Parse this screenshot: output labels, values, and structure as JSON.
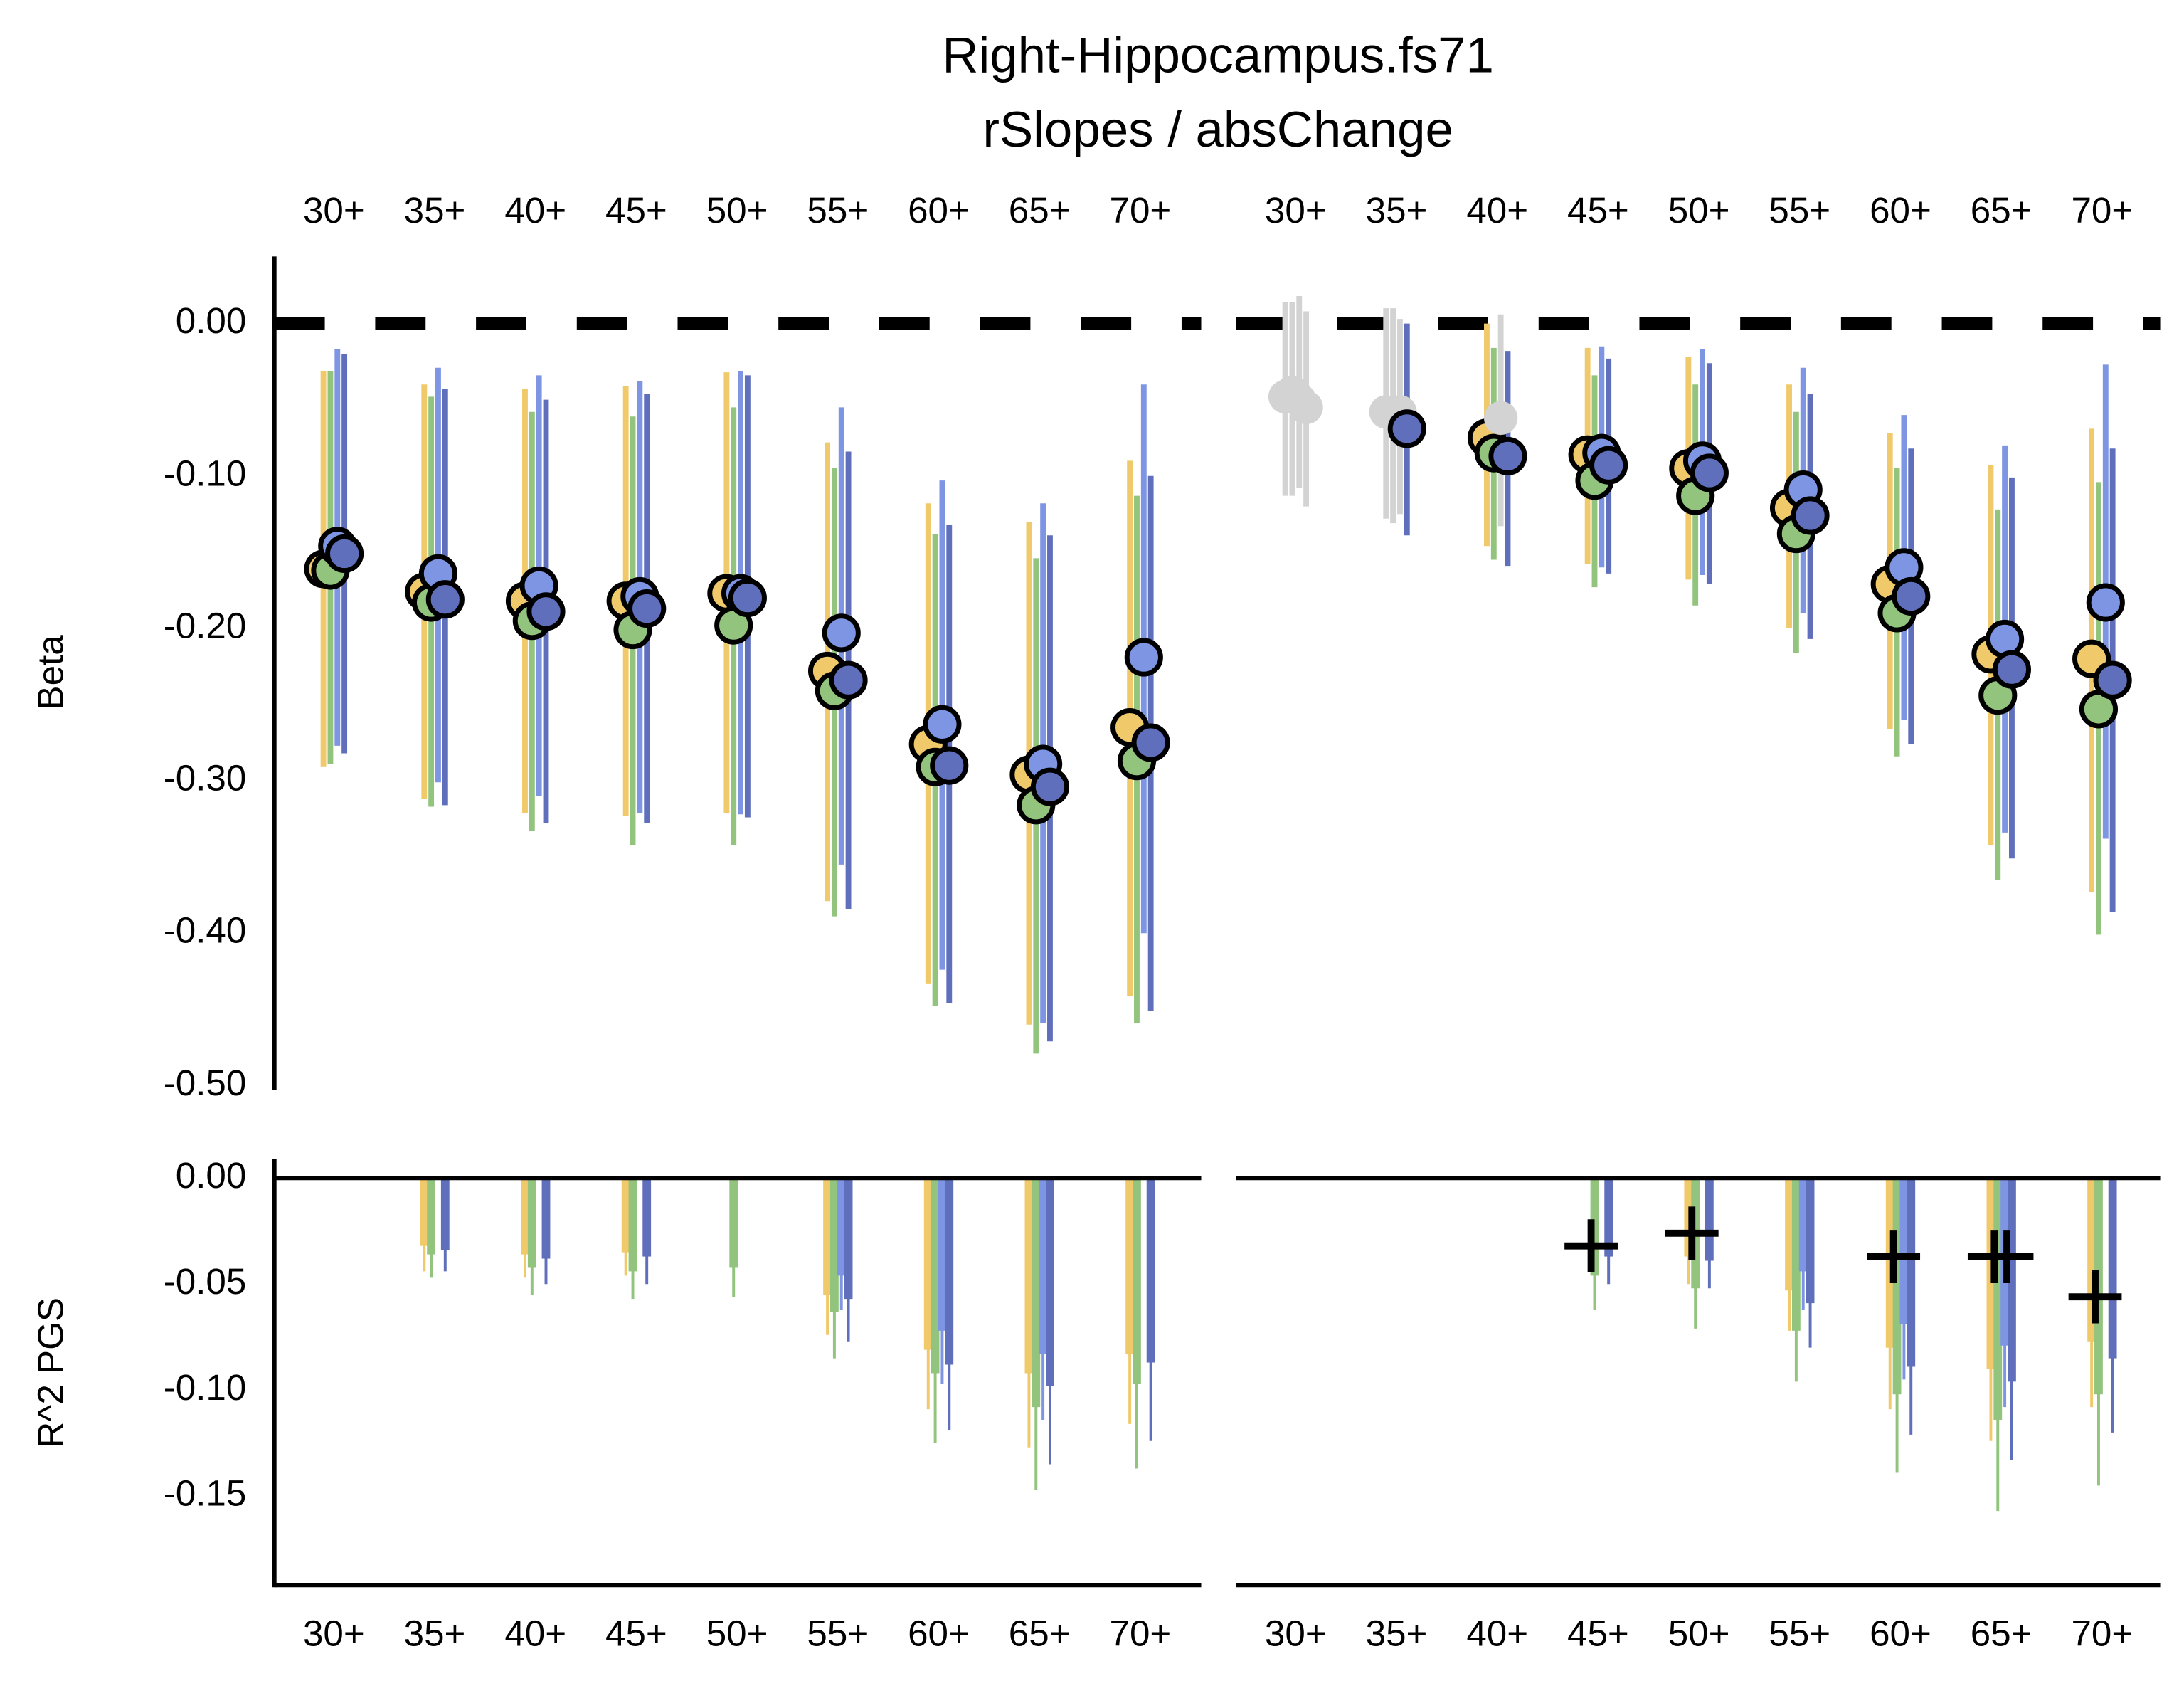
{
  "title": "Right-Hippocampus.fs71",
  "subtitle": "rSlopes / absChange",
  "chart_data": [
    {
      "type": "pointrange",
      "y_label": "Beta",
      "categories": [
        "30+",
        "35+",
        "40+",
        "45+",
        "50+",
        "55+",
        "60+",
        "65+",
        "70+"
      ],
      "ylim": [
        -0.5,
        0.044
      ],
      "yticks": [
        {
          "value": 0,
          "label": "0.00"
        },
        {
          "value": -0.1,
          "label": "-0.10"
        },
        {
          "value": -0.2,
          "label": "-0.20"
        },
        {
          "value": -0.3,
          "label": "-0.30"
        },
        {
          "value": -0.4,
          "label": "-0.40"
        },
        {
          "value": -0.5,
          "label": "-0.50"
        }
      ],
      "series": [
        {
          "color": "#f0c96a",
          "values": [
            -0.161,
            -0.176,
            -0.182,
            -0.182,
            -0.177,
            -0.228,
            -0.276,
            -0.296,
            -0.265
          ],
          "high": [
            -0.031,
            -0.04,
            -0.043,
            -0.041,
            -0.032,
            -0.078,
            -0.118,
            -0.13,
            -0.09
          ],
          "low": [
            -0.291,
            -0.312,
            -0.321,
            -0.323,
            -0.321,
            -0.379,
            -0.433,
            -0.46,
            -0.441
          ]
        },
        {
          "color": "#93c47d",
          "values": [
            -0.162,
            -0.183,
            -0.195,
            -0.201,
            -0.198,
            -0.241,
            -0.291,
            -0.316,
            -0.287
          ],
          "high": [
            -0.031,
            -0.048,
            -0.058,
            -0.061,
            -0.055,
            -0.095,
            -0.138,
            -0.154,
            -0.113
          ],
          "low": [
            -0.289,
            -0.317,
            -0.333,
            -0.342,
            -0.342,
            -0.389,
            -0.448,
            -0.479,
            -0.459
          ]
        },
        {
          "color": "#7e95e3",
          "values": [
            -0.146,
            -0.164,
            -0.172,
            -0.179,
            -0.177,
            -0.203,
            -0.263,
            -0.289,
            -0.219
          ],
          "high": [
            -0.017,
            -0.029,
            -0.034,
            -0.038,
            -0.031,
            -0.055,
            -0.103,
            -0.118,
            -0.04
          ],
          "low": [
            -0.277,
            -0.301,
            -0.31,
            -0.321,
            -0.322,
            -0.355,
            -0.424,
            -0.459,
            -0.4
          ]
        },
        {
          "color": "#5f6fbb",
          "values": [
            -0.151,
            -0.181,
            -0.189,
            -0.187,
            -0.18,
            -0.234,
            -0.29,
            -0.304,
            -0.275
          ],
          "high": [
            -0.02,
            -0.043,
            -0.05,
            -0.046,
            -0.034,
            -0.084,
            -0.132,
            -0.139,
            -0.1
          ],
          "low": [
            -0.282,
            -0.316,
            -0.328,
            -0.328,
            -0.324,
            -0.384,
            -0.446,
            -0.471,
            -0.451
          ]
        }
      ]
    },
    {
      "type": "pointrange",
      "categories": [
        "30+",
        "35+",
        "40+",
        "45+",
        "50+",
        "55+",
        "60+",
        "65+",
        "70+"
      ],
      "ylim": [
        -0.5,
        0.044
      ],
      "muted_color": "#d3d3d3",
      "series": [
        {
          "color": "#f0c96a",
          "muted": [
            true,
            true,
            false,
            false,
            false,
            false,
            false,
            false,
            false
          ],
          "values": [
            -0.048,
            -0.058,
            -0.075,
            -0.086,
            -0.095,
            -0.121,
            -0.171,
            -0.217,
            -0.22
          ],
          "high": [
            0.014,
            0.01,
            0.0,
            -0.016,
            -0.022,
            -0.04,
            -0.072,
            -0.093,
            -0.069
          ],
          "low": [
            -0.113,
            -0.128,
            -0.146,
            -0.158,
            -0.168,
            -0.2,
            -0.266,
            -0.342,
            -0.373
          ]
        },
        {
          "color": "#93c47d",
          "muted": [
            true,
            true,
            false,
            false,
            false,
            false,
            false,
            false,
            false
          ],
          "values": [
            -0.045,
            -0.06,
            -0.085,
            -0.103,
            -0.113,
            -0.138,
            -0.19,
            -0.244,
            -0.253
          ],
          "high": [
            0.014,
            0.01,
            -0.016,
            -0.034,
            -0.04,
            -0.058,
            -0.095,
            -0.122,
            -0.104
          ],
          "low": [
            -0.113,
            -0.131,
            -0.155,
            -0.173,
            -0.185,
            -0.216,
            -0.284,
            -0.365,
            -0.401
          ]
        },
        {
          "color": "#7e95e3",
          "muted": [
            true,
            true,
            true,
            false,
            false,
            false,
            false,
            false,
            false
          ],
          "values": [
            -0.05,
            -0.058,
            -0.062,
            -0.085,
            -0.09,
            -0.109,
            -0.16,
            -0.207,
            -0.183
          ],
          "high": [
            0.018,
            0.003,
            0.006,
            -0.015,
            -0.017,
            -0.029,
            -0.06,
            -0.08,
            -0.027
          ],
          "low": [
            -0.108,
            -0.125,
            -0.133,
            -0.16,
            -0.165,
            -0.19,
            -0.26,
            -0.334,
            -0.338
          ]
        },
        {
          "color": "#5f6fbb",
          "muted": [
            true,
            false,
            false,
            false,
            false,
            false,
            false,
            false,
            false
          ],
          "values": [
            -0.055,
            -0.069,
            -0.087,
            -0.093,
            -0.098,
            -0.126,
            -0.179,
            -0.227,
            -0.234
          ],
          "high": [
            0.008,
            0.0,
            -0.018,
            -0.023,
            -0.026,
            -0.046,
            -0.082,
            -0.101,
            -0.082
          ],
          "low": [
            -0.12,
            -0.139,
            -0.159,
            -0.164,
            -0.171,
            -0.207,
            -0.276,
            -0.351,
            -0.386
          ]
        }
      ]
    },
    {
      "type": "bar",
      "y_label": "R^2 PGS",
      "categories": [
        "30+",
        "35+",
        "40+",
        "45+",
        "50+",
        "55+",
        "60+",
        "65+",
        "70+"
      ],
      "ylim": [
        -0.192,
        0.009
      ],
      "yticks": [
        {
          "value": 0,
          "label": "0.00"
        },
        {
          "value": -0.05,
          "label": "-0.05"
        },
        {
          "value": -0.1,
          "label": "-0.10"
        },
        {
          "value": -0.15,
          "label": "-0.15"
        }
      ],
      "series": [
        {
          "color": "#f0c96a",
          "values": [
            null,
            -0.032,
            -0.036,
            -0.035,
            null,
            -0.055,
            -0.081,
            -0.092,
            -0.083
          ],
          "lower": [
            null,
            -0.044,
            -0.047,
            -0.046,
            null,
            -0.074,
            -0.109,
            -0.127,
            -0.116
          ]
        },
        {
          "color": "#93c47d",
          "values": [
            null,
            -0.036,
            -0.042,
            -0.044,
            -0.042,
            -0.063,
            -0.092,
            -0.108,
            -0.097
          ],
          "lower": [
            null,
            -0.047,
            -0.055,
            -0.057,
            -0.056,
            -0.085,
            -0.125,
            -0.147,
            -0.137
          ]
        },
        {
          "color": "#7e95e3",
          "values": [
            null,
            null,
            null,
            null,
            null,
            -0.046,
            -0.072,
            -0.083,
            null
          ],
          "lower": [
            null,
            null,
            null,
            null,
            null,
            -0.062,
            -0.097,
            -0.114,
            null
          ]
        },
        {
          "color": "#5f6fbb",
          "values": [
            null,
            -0.034,
            -0.038,
            -0.037,
            null,
            -0.057,
            -0.088,
            -0.098,
            -0.087
          ],
          "lower": [
            null,
            -0.044,
            -0.05,
            -0.05,
            null,
            -0.077,
            -0.119,
            -0.135,
            -0.124
          ]
        }
      ]
    },
    {
      "type": "bar",
      "categories": [
        "30+",
        "35+",
        "40+",
        "45+",
        "50+",
        "55+",
        "60+",
        "65+",
        "70+"
      ],
      "ylim": [
        -0.192,
        0.009
      ],
      "series": [
        {
          "color": "#f0c96a",
          "values": [
            null,
            null,
            null,
            null,
            -0.037,
            -0.053,
            -0.08,
            -0.09,
            -0.077
          ],
          "lower": [
            null,
            null,
            null,
            null,
            -0.05,
            -0.072,
            -0.109,
            -0.124,
            -0.108
          ]
        },
        {
          "color": "#93c47d",
          "values": [
            null,
            null,
            null,
            -0.046,
            -0.052,
            -0.072,
            -0.102,
            -0.114,
            -0.102
          ],
          "lower": [
            null,
            null,
            null,
            -0.062,
            -0.071,
            -0.096,
            -0.139,
            -0.157,
            -0.145
          ]
        },
        {
          "color": "#7e95e3",
          "values": [
            null,
            null,
            null,
            null,
            null,
            -0.044,
            -0.069,
            -0.079,
            null
          ],
          "lower": [
            null,
            null,
            null,
            null,
            null,
            -0.062,
            -0.095,
            -0.108,
            null
          ]
        },
        {
          "color": "#5f6fbb",
          "values": [
            null,
            null,
            null,
            -0.037,
            -0.039,
            -0.059,
            -0.089,
            -0.096,
            -0.085
          ],
          "lower": [
            null,
            null,
            null,
            -0.05,
            -0.052,
            -0.08,
            -0.121,
            -0.133,
            -0.12
          ]
        }
      ],
      "markers": [
        {
          "values": [
            null,
            null,
            null,
            -0.032,
            -0.026,
            null,
            -0.037,
            -0.037,
            -0.056
          ]
        },
        {
          "values": [
            null,
            null,
            null,
            null,
            null,
            null,
            null,
            -0.037,
            null
          ]
        }
      ]
    }
  ]
}
